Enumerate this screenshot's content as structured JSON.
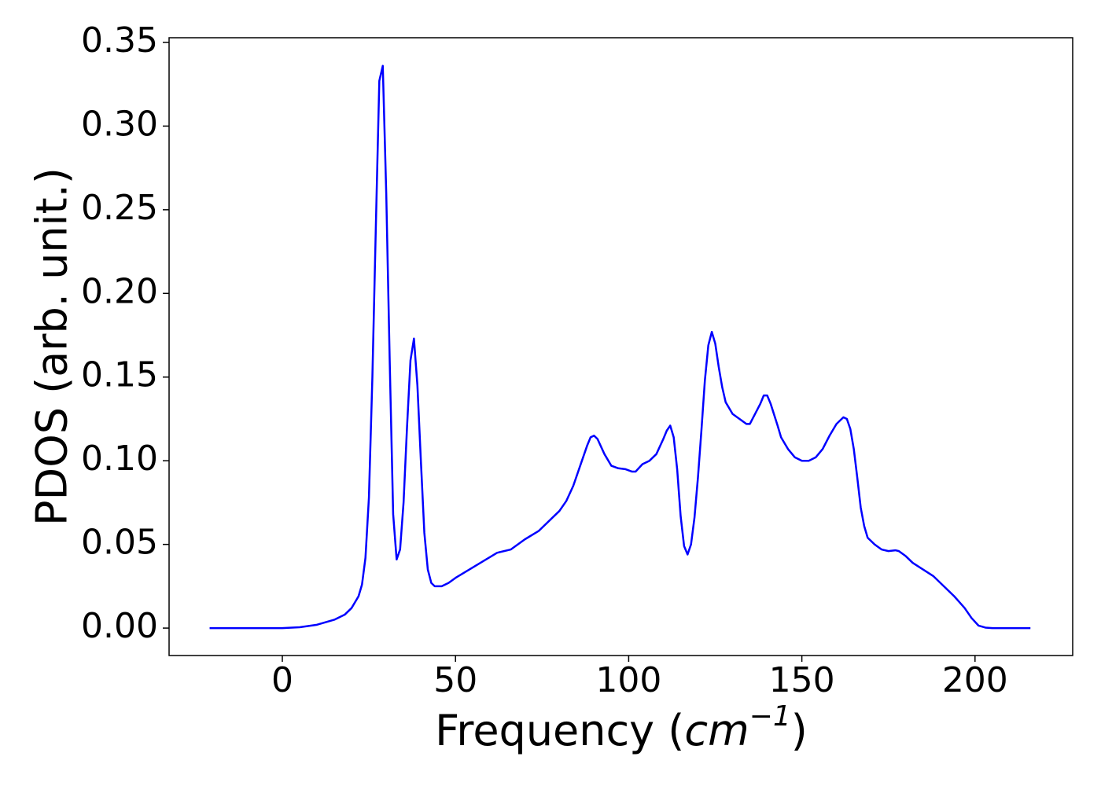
{
  "chart_data": {
    "type": "line",
    "xlabel": [
      "Frequency (",
      "cm",
      "−1",
      ")"
    ],
    "ylabel": "PDOS (arb. unit.)",
    "x": [
      -21,
      0,
      5,
      10,
      15,
      18,
      20,
      22,
      23,
      24,
      25,
      26,
      27,
      28,
      29,
      30,
      31,
      32,
      33,
      34,
      35,
      36,
      37,
      38,
      39,
      40,
      41,
      42,
      43,
      44,
      46,
      48,
      50,
      54,
      58,
      62,
      66,
      70,
      74,
      78,
      80,
      82,
      84,
      86,
      88,
      89,
      90,
      91,
      93,
      95,
      97,
      99,
      101,
      102,
      104,
      106,
      108,
      110,
      111,
      112,
      113,
      114,
      115,
      116,
      117,
      118,
      119,
      120,
      121,
      122,
      123,
      124,
      125,
      126,
      127,
      128,
      130,
      132,
      134,
      135,
      136,
      138,
      139,
      140,
      141,
      143,
      144,
      146,
      148,
      150,
      152,
      154,
      156,
      158,
      160,
      162,
      163,
      164,
      165,
      166,
      167,
      168,
      169,
      171,
      173,
      175,
      177,
      178,
      180,
      182,
      185,
      188,
      191,
      194,
      197,
      199,
      201,
      203,
      205,
      216
    ],
    "values": [
      0,
      0,
      0.0005,
      0.002,
      0.005,
      0.008,
      0.012,
      0.019,
      0.026,
      0.042,
      0.078,
      0.15,
      0.24,
      0.327,
      0.336,
      0.26,
      0.16,
      0.068,
      0.041,
      0.047,
      0.075,
      0.12,
      0.16,
      0.173,
      0.145,
      0.1,
      0.057,
      0.035,
      0.027,
      0.025,
      0.025,
      0.027,
      0.03,
      0.035,
      0.04,
      0.045,
      0.047,
      0.053,
      0.058,
      0.066,
      0.07,
      0.076,
      0.085,
      0.097,
      0.109,
      0.114,
      0.115,
      0.113,
      0.104,
      0.097,
      0.0955,
      0.095,
      0.0935,
      0.0935,
      0.098,
      0.1,
      0.104,
      0.113,
      0.118,
      0.121,
      0.114,
      0.095,
      0.067,
      0.049,
      0.044,
      0.05,
      0.066,
      0.09,
      0.118,
      0.148,
      0.169,
      0.177,
      0.17,
      0.156,
      0.144,
      0.135,
      0.128,
      0.125,
      0.122,
      0.122,
      0.126,
      0.134,
      0.139,
      0.139,
      0.134,
      0.121,
      0.114,
      0.107,
      0.102,
      0.1,
      0.1,
      0.102,
      0.107,
      0.115,
      0.122,
      0.126,
      0.125,
      0.119,
      0.107,
      0.09,
      0.072,
      0.061,
      0.054,
      0.05,
      0.047,
      0.046,
      0.0465,
      0.046,
      0.043,
      0.039,
      0.035,
      0.031,
      0.025,
      0.019,
      0.012,
      0.006,
      0.0015,
      0.0003,
      0,
      0
    ],
    "color": "#0000ff",
    "xlim": [
      -32.7,
      228.2
    ],
    "ylim": [
      -0.0164,
      0.3528
    ],
    "xticks": [
      0,
      50,
      100,
      150,
      200
    ],
    "yticks": [
      {
        "value": 0,
        "label": "0.00"
      },
      {
        "value": 0.05,
        "label": "0.05"
      },
      {
        "value": 0.1,
        "label": "0.10"
      },
      {
        "value": 0.15,
        "label": "0.15"
      },
      {
        "value": 0.2,
        "label": "0.20"
      },
      {
        "value": 0.25,
        "label": "0.25"
      },
      {
        "value": 0.3,
        "label": "0.30"
      },
      {
        "value": 0.35,
        "label": "0.35"
      }
    ],
    "grid": false
  }
}
